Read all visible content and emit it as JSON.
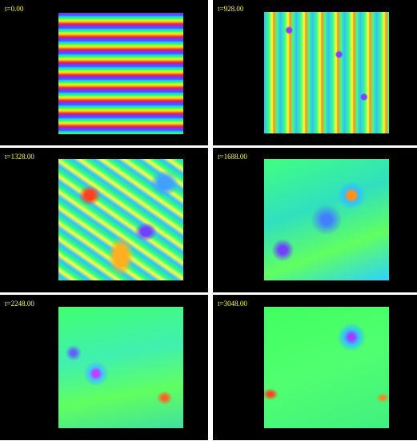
{
  "panels": [
    {
      "label": "t=0.00"
    },
    {
      "label": "t=928.00"
    },
    {
      "label": "t=1328.00"
    },
    {
      "label": "t=1688.00"
    },
    {
      "label": "t=2248.00"
    },
    {
      "label": "t=3048.00"
    }
  ]
}
